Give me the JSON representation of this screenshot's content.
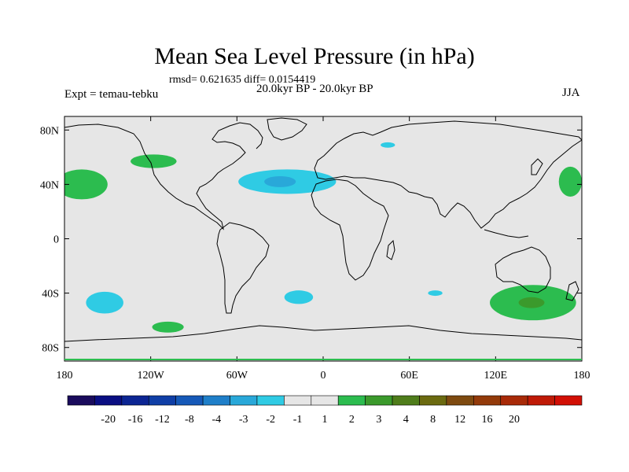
{
  "chart_data": {
    "type": "heatmap",
    "title": "Mean Sea Level Pressure (in hPa)",
    "stats_line": "rmsd= 0.621635 diff= 0.0154419",
    "subtitle_left": "Expt = temau-tebku",
    "subtitle_center": "20.0kyr BP - 20.0kyr BP",
    "subtitle_right": "JJA",
    "xlim": [
      -180,
      180
    ],
    "ylim": [
      -90,
      90
    ],
    "x_ticks": [
      {
        "value": -180,
        "label": "180"
      },
      {
        "value": -120,
        "label": "120W"
      },
      {
        "value": -60,
        "label": "60W"
      },
      {
        "value": 0,
        "label": "0"
      },
      {
        "value": 60,
        "label": "60E"
      },
      {
        "value": 120,
        "label": "120E"
      },
      {
        "value": 180,
        "label": "180"
      }
    ],
    "y_ticks": [
      {
        "value": 80,
        "label": "80N"
      },
      {
        "value": 40,
        "label": "40N"
      },
      {
        "value": 0,
        "label": "0"
      },
      {
        "value": -40,
        "label": "40S"
      },
      {
        "value": -80,
        "label": "80S"
      }
    ],
    "colorbar": {
      "colors": [
        "#1a0b5c",
        "#0a0e82",
        "#0c2593",
        "#0f3ea6",
        "#1659b8",
        "#1f7fc9",
        "#29a8d9",
        "#2fcbe4",
        "#e6e6e6",
        "#e6e6e6",
        "#2cbc4f",
        "#3b9a2c",
        "#4f7d1b",
        "#6b6a10",
        "#7e4a10",
        "#933a0a",
        "#a82a08",
        "#bf1a06",
        "#d20f05"
      ],
      "labels": [
        "-20",
        "-16",
        "-12",
        "-8",
        "-4",
        "-3",
        "-2",
        "-1",
        "1",
        "2",
        "3",
        "4",
        "8",
        "12",
        "16",
        "20"
      ]
    },
    "regions": [
      {
        "name": "north-atlantic-low",
        "value": -1.5,
        "color": "#2fcbe4",
        "lon": -25,
        "lat": 42,
        "rlon": 34,
        "rlat": 9
      },
      {
        "name": "north-atlantic-core",
        "value": -2.5,
        "color": "#29a8d9",
        "lon": -30,
        "lat": 42,
        "rlon": 11,
        "rlat": 4
      },
      {
        "name": "north-pacific-high",
        "value": 1.5,
        "color": "#2cbc4f",
        "lon": -168,
        "lat": 40,
        "rlon": 18,
        "rlat": 11
      },
      {
        "name": "north-america-high",
        "value": 1.5,
        "color": "#2cbc4f",
        "lon": -118,
        "lat": 57,
        "rlon": 16,
        "rlat": 5
      },
      {
        "name": "west-pacific-high",
        "value": 1.5,
        "color": "#2cbc4f",
        "lon": 172,
        "lat": 42,
        "rlon": 8,
        "rlat": 11
      },
      {
        "name": "arctic-low",
        "value": -1.5,
        "color": "#2fcbe4",
        "lon": 45,
        "lat": 69,
        "rlon": 5,
        "rlat": 2
      },
      {
        "name": "south-pacific-low",
        "value": -1.5,
        "color": "#2fcbe4",
        "lon": -152,
        "lat": -47,
        "rlon": 13,
        "rlat": 8
      },
      {
        "name": "south-atlantic-low",
        "value": -1.5,
        "color": "#2fcbe4",
        "lon": -17,
        "lat": -43,
        "rlon": 10,
        "rlat": 5
      },
      {
        "name": "indian-ocean-low",
        "value": -1.5,
        "color": "#2fcbe4",
        "lon": 78,
        "lat": -40,
        "rlon": 5,
        "rlat": 2
      },
      {
        "name": "southern-pacific-high",
        "value": 1.5,
        "color": "#2cbc4f",
        "lon": -108,
        "lat": -65,
        "rlon": 11,
        "rlat": 4
      },
      {
        "name": "australia-high",
        "value": 1.5,
        "color": "#2cbc4f",
        "lon": 146,
        "lat": -47,
        "rlon": 30,
        "rlat": 13
      },
      {
        "name": "australia-high-core",
        "value": 2.5,
        "color": "#3b9a2c",
        "lon": 145,
        "lat": -47,
        "rlon": 9,
        "rlat": 4
      }
    ]
  }
}
